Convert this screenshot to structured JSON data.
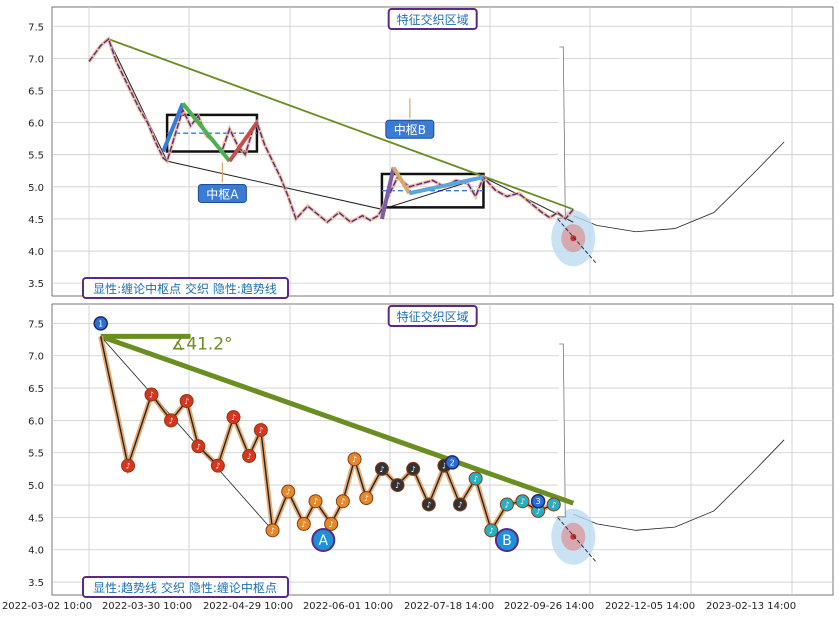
{
  "colors": {
    "grid": "#cccccc",
    "axis": "#555555",
    "price": "#5b2a86",
    "trend": "#6b8e23",
    "zhongshu_box": "#111111",
    "accent_blue": "#3a7bd5",
    "highlight_blue": "#bcdcf2",
    "highlight_red": "#e08080"
  },
  "icons": [
    "note-marker-icon",
    "angle-icon"
  ],
  "chart_data": [
    {
      "type": "line",
      "panel": "top",
      "top_label": "特征交织区域",
      "bottom_label": "显性:缠论中枢点 交织 隐性:趋势线",
      "zhongshu_labels": [
        "中枢A",
        "中枢B"
      ],
      "ylim": [
        3.3,
        7.8
      ],
      "yticks": [
        3.5,
        4.0,
        4.5,
        5.0,
        5.5,
        6.0,
        6.5,
        7.0,
        7.5
      ],
      "grid": true,
      "series": [
        {
          "values": [
            [
              0,
              6.95
            ],
            [
              3,
              7.2
            ],
            [
              5,
              7.3
            ],
            [
              7,
              6.95
            ],
            [
              9,
              6.7
            ],
            [
              11,
              6.45
            ],
            [
              13,
              6.2
            ],
            [
              15,
              6.0
            ],
            [
              17,
              5.7
            ],
            [
              19,
              5.45
            ],
            [
              20,
              5.4
            ],
            [
              22,
              5.8
            ],
            [
              24,
              6.2
            ],
            [
              26,
              5.95
            ],
            [
              28,
              6.1
            ],
            [
              30,
              5.8
            ],
            [
              32,
              5.7
            ],
            [
              34,
              5.55
            ],
            [
              36,
              5.9
            ],
            [
              38,
              5.65
            ],
            [
              40,
              5.5
            ],
            [
              42,
              5.9
            ],
            [
              43,
              6.0
            ],
            [
              45,
              5.65
            ],
            [
              47,
              5.4
            ],
            [
              49,
              5.15
            ],
            [
              51,
              4.85
            ],
            [
              53,
              4.5
            ],
            [
              56,
              4.7
            ],
            [
              58,
              4.6
            ],
            [
              61,
              4.45
            ],
            [
              64,
              4.6
            ],
            [
              67,
              4.45
            ],
            [
              70,
              4.55
            ],
            [
              72,
              4.48
            ],
            [
              74,
              4.55
            ],
            [
              75,
              4.65
            ],
            [
              77,
              4.9
            ],
            [
              79,
              5.15
            ],
            [
              82,
              5.0
            ],
            [
              85,
              5.05
            ],
            [
              88,
              5.1
            ],
            [
              91,
              5.0
            ],
            [
              94,
              5.1
            ],
            [
              97,
              5.05
            ],
            [
              99,
              4.85
            ],
            [
              101,
              5.15
            ],
            [
              104,
              4.95
            ],
            [
              107,
              4.85
            ],
            [
              110,
              4.9
            ],
            [
              113,
              4.75
            ],
            [
              116,
              4.6
            ],
            [
              118,
              4.52
            ],
            [
              120,
              4.6
            ],
            [
              122,
              4.5
            ],
            [
              124,
              4.65
            ]
          ]
        }
      ],
      "trendlines": [
        [
          [
            5,
            7.3
          ],
          [
            124,
            4.65
          ]
        ],
        [
          [
            5,
            7.3
          ],
          [
            20,
            5.4
          ],
          [
            75,
            4.65
          ],
          [
            101,
            5.15
          ],
          [
            124,
            4.45
          ]
        ]
      ],
      "zhongshu": [
        {
          "x": [
            20,
            43
          ],
          "y": [
            5.55,
            6.12
          ]
        },
        {
          "x": [
            75,
            101
          ],
          "y": [
            4.68,
            5.2
          ]
        }
      ],
      "projection": [
        [
          124,
          4.55
        ],
        [
          130,
          4.4
        ],
        [
          140,
          4.3
        ],
        [
          150,
          4.35
        ],
        [
          160,
          4.6
        ],
        [
          170,
          5.2
        ],
        [
          178,
          5.7
        ]
      ]
    },
    {
      "type": "line",
      "panel": "bottom",
      "top_label": "特征交织区域",
      "bottom_label": "显性:趋势线 交织 隐性:缠论中枢点",
      "angle_label": "∡41.2°",
      "point_labels": [
        "A",
        "B"
      ],
      "ylim": [
        3.3,
        7.8
      ],
      "yticks": [
        3.5,
        4.0,
        4.5,
        5.0,
        5.5,
        6.0,
        6.5,
        7.0,
        7.5
      ],
      "grid": true,
      "xticks": [
        "2022-03-02 10:00",
        "2022-03-30 10:00",
        "2022-04-29 10:00",
        "2022-06-01 10:00",
        "2022-07-18 14:00",
        "2022-09-26 14:00",
        "2022-12-05 14:00",
        "2023-02-13 14:00"
      ],
      "trendlines": [
        [
          [
            3,
            7.3
          ],
          [
            26,
            7.3
          ]
        ],
        [
          [
            3,
            7.3
          ],
          [
            124,
            4.72
          ]
        ]
      ],
      "zigzag": [
        [
          3,
          7.3
        ],
        [
          10,
          5.3
        ],
        [
          16,
          6.4
        ],
        [
          21,
          6.0
        ],
        [
          25,
          6.3
        ],
        [
          28,
          5.6
        ],
        [
          33,
          5.3
        ],
        [
          37,
          6.05
        ],
        [
          41,
          5.45
        ],
        [
          44,
          5.85
        ],
        [
          47,
          4.3
        ],
        [
          51,
          4.9
        ],
        [
          55,
          4.4
        ],
        [
          58,
          4.75
        ],
        [
          62,
          4.4
        ],
        [
          65,
          4.75
        ],
        [
          68,
          5.4
        ],
        [
          71,
          4.8
        ],
        [
          75,
          5.25
        ],
        [
          79,
          5.0
        ],
        [
          83,
          5.25
        ],
        [
          87,
          4.7
        ],
        [
          91,
          5.3
        ],
        [
          95,
          4.7
        ],
        [
          99,
          5.1
        ],
        [
          103,
          4.3
        ],
        [
          107,
          4.7
        ],
        [
          111,
          4.75
        ],
        [
          115,
          4.6
        ],
        [
          119,
          4.7
        ]
      ],
      "markers": [
        {
          "x": 3,
          "y": 7.5,
          "label": "1"
        },
        {
          "x": 93,
          "y": 5.35,
          "label": "2"
        },
        {
          "x": 115,
          "y": 4.75,
          "label": "3"
        }
      ],
      "projection": [
        [
          124,
          4.55
        ],
        [
          130,
          4.4
        ],
        [
          140,
          4.3
        ],
        [
          150,
          4.35
        ],
        [
          160,
          4.6
        ],
        [
          170,
          5.2
        ],
        [
          178,
          5.7
        ]
      ]
    }
  ]
}
